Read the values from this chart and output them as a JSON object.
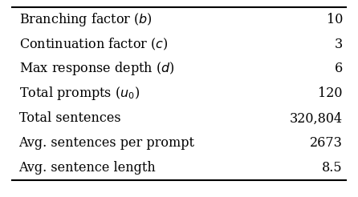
{
  "rows": [
    [
      "Branching factor ($b$)",
      "10"
    ],
    [
      "Continuation factor ($c$)",
      "3"
    ],
    [
      "Max response depth ($d$)",
      "6"
    ],
    [
      "Total prompts ($u_0$)",
      "120"
    ],
    [
      "Total sentences",
      "320,804"
    ],
    [
      "Avg. sentences per prompt",
      "2673"
    ],
    [
      "Avg. sentence length",
      "8.5"
    ]
  ],
  "bg_color": "#ffffff",
  "text_color": "#000000",
  "line_color": "#000000",
  "font_size": 11.5
}
